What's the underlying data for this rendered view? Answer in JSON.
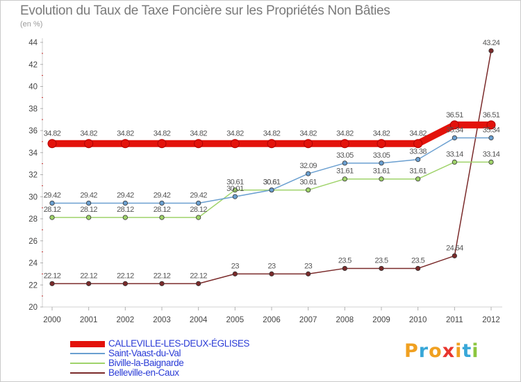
{
  "title": "Evolution du Taux de Taxe Foncière sur les Propriétés Non Bâties",
  "subtitle": "(en %)",
  "logo": {
    "text": "Proxiti",
    "letter_colors": [
      "#f0a020",
      "#38a7d8",
      "#f0a020",
      "#e8352e",
      "#f0a020",
      "#38a7d8",
      "#8cc63f"
    ]
  },
  "chart_data": {
    "type": "line",
    "title": "Evolution du Taux de Taxe Foncière sur les Propriétés Non Bâties",
    "ylabel": "(en %)",
    "xlabel": "",
    "ylim": [
      20,
      44
    ],
    "yticks": [
      20,
      22,
      24,
      26,
      28,
      30,
      32,
      34,
      36,
      38,
      40,
      42,
      44
    ],
    "grid": false,
    "legend_position": "bottom-left",
    "categories": [
      "2000",
      "2001",
      "2002",
      "2003",
      "2004",
      "2005",
      "2006",
      "2007",
      "2008",
      "2009",
      "2010",
      "2011",
      "2012"
    ],
    "series": [
      {
        "name": "CALLEVILLE-LES-DEUX-ÉGLISES",
        "color": "#e3120b",
        "values": [
          34.82,
          34.82,
          34.82,
          34.82,
          34.82,
          34.82,
          34.82,
          34.82,
          34.82,
          34.82,
          34.82,
          36.51,
          36.51
        ],
        "labels": [
          "34.82",
          "34.82",
          "34.82",
          "34.82",
          "34.82",
          "34.82",
          "34.82",
          "34.82",
          "34.82",
          "34.82",
          "34.82",
          "36.51",
          "36.51"
        ]
      },
      {
        "name": "Saint-Vaast-du-Val",
        "color": "#6a9fd0",
        "values": [
          29.42,
          29.42,
          29.42,
          29.42,
          29.42,
          30.01,
          30.61,
          32.09,
          33.05,
          33.05,
          33.38,
          35.34,
          35.34
        ],
        "labels": [
          "29.42",
          "29.42",
          "29.42",
          "29.42",
          "29.42",
          "30.01",
          "30.61",
          "32.09",
          "33.05",
          "33.05",
          "33.38",
          "35.34",
          "35.34"
        ]
      },
      {
        "name": "Biville-la-Baignarde",
        "color": "#9fd36a",
        "values": [
          28.12,
          28.12,
          28.12,
          28.12,
          28.12,
          30.61,
          30.61,
          30.61,
          31.61,
          31.61,
          31.61,
          33.14,
          33.14
        ],
        "labels": [
          "28.12",
          "28.12",
          "28.12",
          "28.12",
          "28.12",
          "30.61",
          "30.61",
          "30.61",
          "31.61",
          "31.61",
          "31.61",
          "33.14",
          "33.14"
        ]
      },
      {
        "name": "Belleville-en-Caux",
        "color": "#7a2a2a",
        "values": [
          22.12,
          22.12,
          22.12,
          22.12,
          22.12,
          23,
          23,
          23,
          23.5,
          23.5,
          23.5,
          24.64,
          43.24
        ],
        "labels": [
          "22.12",
          "22.12",
          "22.12",
          "22.12",
          "22.12",
          "23",
          "23",
          "23",
          "23.5",
          "23.5",
          "23.5",
          "24.64",
          "43.24"
        ]
      }
    ]
  }
}
